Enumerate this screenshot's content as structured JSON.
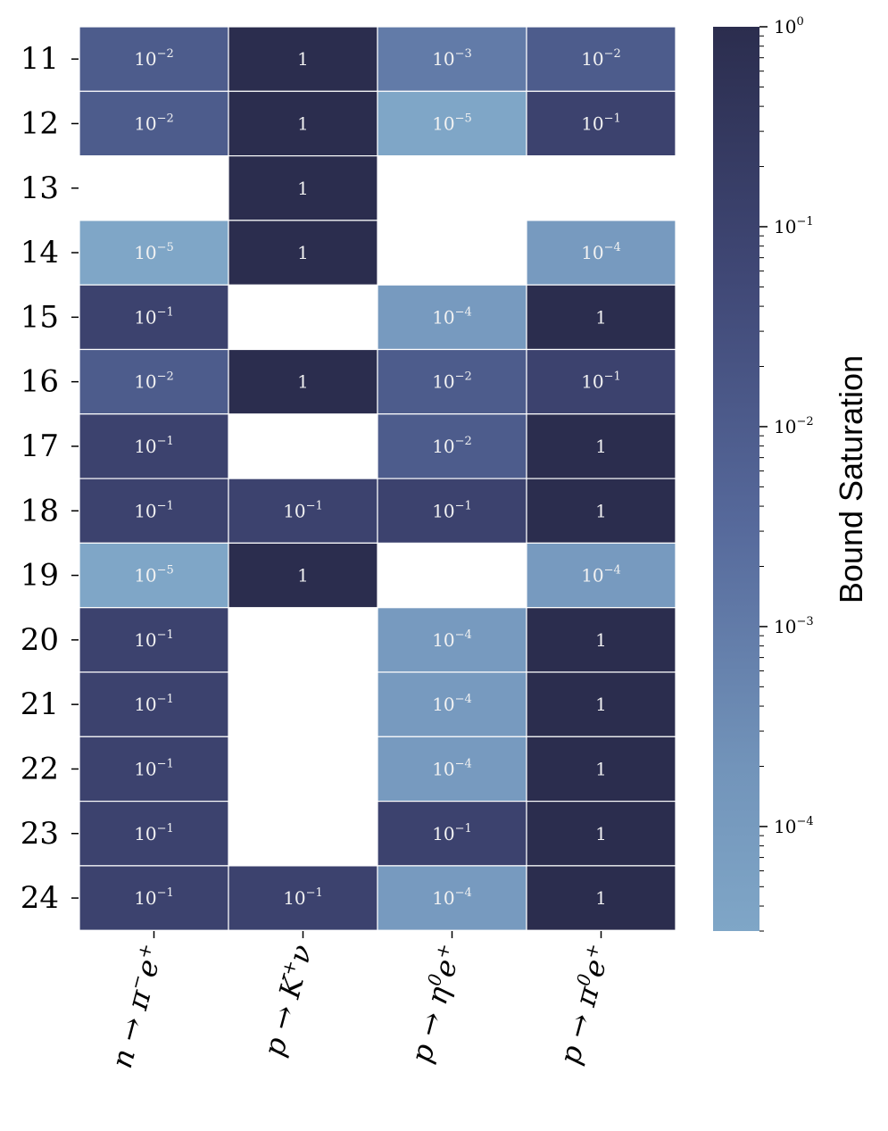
{
  "chart_data": {
    "type": "heatmap",
    "rows": [
      "11",
      "12",
      "13",
      "14",
      "15",
      "16",
      "17",
      "18",
      "19",
      "20",
      "21",
      "22",
      "23",
      "24"
    ],
    "columns": [
      {
        "base": "n → π",
        "sup": "−",
        "base2": "e",
        "sup2": "+"
      },
      {
        "base": "p → K",
        "sup": "+",
        "base2": "ν",
        "sup2": ""
      },
      {
        "base": "p → η",
        "sup": "0",
        "base2": "e",
        "sup2": "+"
      },
      {
        "base": "p → π",
        "sup": "0",
        "base2": "e",
        "sup2": "+"
      }
    ],
    "values": [
      [
        -2,
        0,
        -3,
        -2
      ],
      [
        -2,
        0,
        -5,
        -1
      ],
      [
        null,
        0,
        null,
        null
      ],
      [
        -5,
        0,
        null,
        -4
      ],
      [
        -1,
        null,
        -4,
        0
      ],
      [
        -2,
        0,
        -2,
        -1
      ],
      [
        -1,
        null,
        -2,
        0
      ],
      [
        -1,
        -1,
        -1,
        0
      ],
      [
        -5,
        0,
        null,
        -4
      ],
      [
        -1,
        null,
        -4,
        0
      ],
      [
        -1,
        null,
        -4,
        0
      ],
      [
        -1,
        null,
        -4,
        0
      ],
      [
        -1,
        null,
        -1,
        0
      ],
      [
        -1,
        -1,
        -4,
        0
      ]
    ],
    "value_encoding": "log10 of bound saturation; null = empty cell",
    "colorbar": {
      "label": "Bound Saturation",
      "scale": "log",
      "range": [
        3e-05,
        1
      ],
      "major_ticks": [
        0,
        -1,
        -2,
        -3,
        -4
      ],
      "colors": {
        "low": "#7fa6c7",
        "high": "#2b2d4e"
      }
    }
  }
}
